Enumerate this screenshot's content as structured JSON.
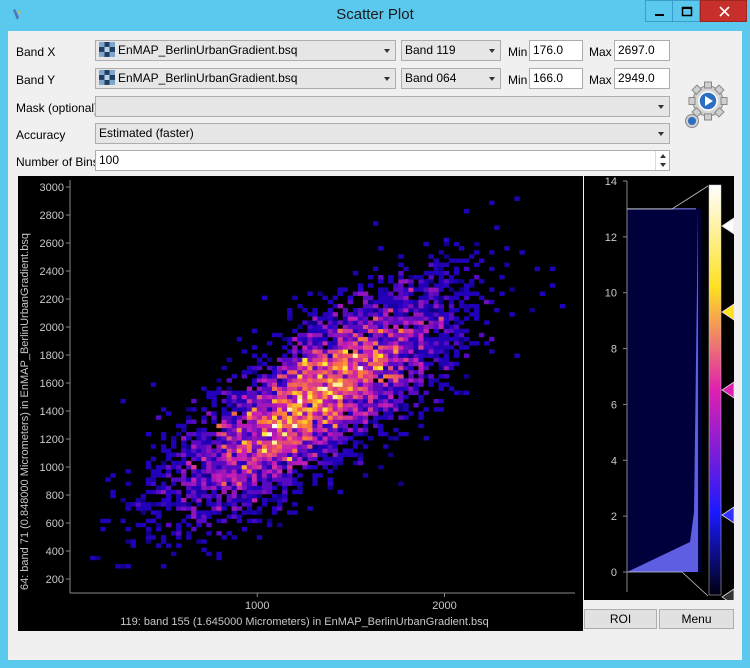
{
  "window": {
    "title": "Scatter Plot",
    "icon": "app-icon"
  },
  "form": {
    "band_x": {
      "label": "Band X",
      "file": "EnMAP_BerlinUrbanGradient.bsq",
      "band": "Band 119",
      "min_label": "Min",
      "min": "176.0",
      "max_label": "Max",
      "max": "2697.0"
    },
    "band_y": {
      "label": "Band Y",
      "file": "EnMAP_BerlinUrbanGradient.bsq",
      "band": "Band 064",
      "min_label": "Min",
      "min": "166.0",
      "max_label": "Max",
      "max": "2949.0"
    },
    "mask": {
      "label": "Mask (optional)",
      "value": ""
    },
    "accuracy": {
      "label": "Accuracy",
      "value": "Estimated (faster)"
    },
    "bins": {
      "label": "Number of Bins",
      "value": "100"
    }
  },
  "chart_data": {
    "type": "heatmap",
    "xlabel": "119: band 155 (1.645000 Micrometers) in EnMAP_BerlinUrbanGradient.bsq",
    "ylabel": "64: band 71 (0.848000 Micrometers) in EnMAP_BerlinUrbanGradient.bsq",
    "x_ticks": [
      "1000",
      "2000"
    ],
    "y_ticks": [
      "200",
      "400",
      "600",
      "800",
      "1000",
      "1200",
      "1400",
      "1600",
      "1800",
      "2000",
      "2200",
      "2400",
      "2600",
      "2800",
      "3000"
    ],
    "xlim": [
      0,
      2697
    ],
    "ylim": [
      100,
      3050
    ],
    "colormap": "black-blue-magenta-yellow-white"
  },
  "histogram": {
    "ticks": [
      "0",
      "2",
      "4",
      "6",
      "8",
      "10",
      "12",
      "14"
    ],
    "range": [
      0,
      14
    ],
    "max_count": 13,
    "colors": {
      "background": "#000000",
      "fill": "#00003c",
      "line": "#6e6eff"
    }
  },
  "buttons": {
    "roi": "ROI",
    "menu": "Menu"
  }
}
